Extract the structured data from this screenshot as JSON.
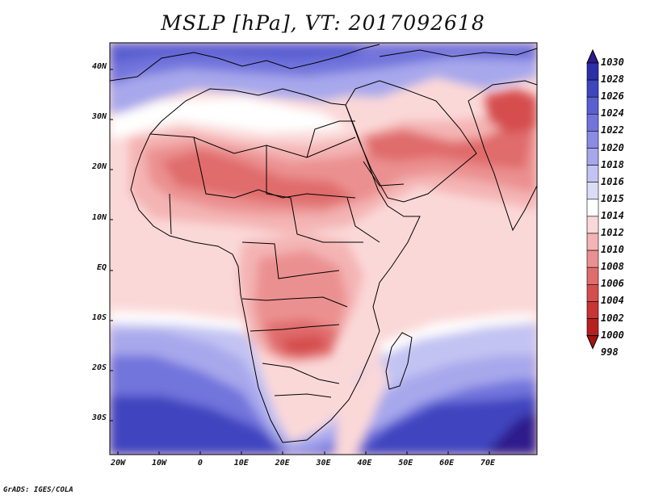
{
  "title": "MSLP [hPa], VT: 2017092618",
  "footer": "GrADS: IGES/COLA",
  "map": {
    "projection": "lat-lon",
    "lon_range": [
      -22,
      82
    ],
    "lat_range": [
      -37,
      45
    ],
    "lat_ticks": [
      {
        "lat": 40,
        "label": "40N"
      },
      {
        "lat": 30,
        "label": "30N"
      },
      {
        "lat": 20,
        "label": "20N"
      },
      {
        "lat": 10,
        "label": "10N"
      },
      {
        "lat": 0,
        "label": "EQ"
      },
      {
        "lat": -10,
        "label": "10S"
      },
      {
        "lat": -20,
        "label": "20S"
      },
      {
        "lat": -30,
        "label": "30S"
      }
    ],
    "lon_ticks": [
      {
        "lon": -20,
        "label": "20W"
      },
      {
        "lon": -10,
        "label": "10W"
      },
      {
        "lon": 0,
        "label": "0"
      },
      {
        "lon": 10,
        "label": "10E"
      },
      {
        "lon": 20,
        "label": "20E"
      },
      {
        "lon": 30,
        "label": "30E"
      },
      {
        "lon": 40,
        "label": "40E"
      },
      {
        "lon": 50,
        "label": "50E"
      },
      {
        "lon": 60,
        "label": "60E"
      },
      {
        "lon": 70,
        "label": "70E"
      }
    ]
  },
  "colorbar": {
    "levels": [
      "1030",
      "1028",
      "1026",
      "1024",
      "1022",
      "1020",
      "1018",
      "1016",
      "1015",
      "1014",
      "1012",
      "1010",
      "1008",
      "1006",
      "1004",
      "1002",
      "1000",
      "998"
    ],
    "colors": [
      "#2d1a8c",
      "#2d2fa8",
      "#3f45bf",
      "#5a5fd1",
      "#7274dc",
      "#8a8be4",
      "#a7a7ec",
      "#c3c3f3",
      "#dcdcf8",
      "#ffffff",
      "#fbd8d8",
      "#f4b4b4",
      "#eb9090",
      "#e06c6c",
      "#d54e4e",
      "#c93434",
      "#b81f1f",
      "#a31313"
    ]
  }
}
